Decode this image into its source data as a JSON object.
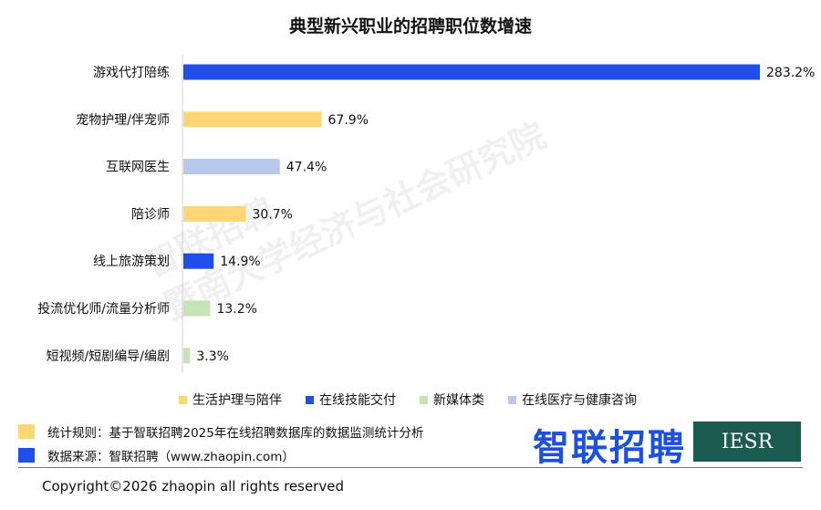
{
  "title": "典型新兴职业的招聘职位数增速",
  "colors": {
    "life": "#fcd773",
    "tech": "#1f4fe8",
    "media": "#c5e4b5",
    "health": "#b8c8ea"
  },
  "chart_data": {
    "type": "bar",
    "orientation": "horizontal",
    "title": "典型新兴职业的招聘职位数增速",
    "categories": [
      "游戏代打陪练",
      "宠物护理/伴宠师",
      "互联网医生",
      "陪诊师",
      "线上旅游策划",
      "投流优化师/流量分析师",
      "短视频/短剧编导/编剧"
    ],
    "values": [
      283.2,
      67.9,
      47.4,
      30.7,
      14.9,
      13.2,
      3.3
    ],
    "value_labels": [
      "283.2%",
      "67.9%",
      "47.4%",
      "30.7%",
      "14.9%",
      "13.2%",
      "3.3%"
    ],
    "groups": [
      "tech",
      "life",
      "health",
      "life",
      "tech",
      "media",
      "media"
    ],
    "legend": [
      {
        "name": "生活护理与陪伴",
        "group": "life"
      },
      {
        "name": "在线技能交付",
        "group": "tech"
      },
      {
        "name": "新媒体类",
        "group": "media"
      },
      {
        "name": "在线医疗与健康咨询",
        "group": "health"
      }
    ],
    "xlim": [
      0,
      283.2
    ],
    "grid": false,
    "legend_position": "bottom"
  },
  "watermark": [
    "智联招聘",
    "暨南大学经济与社会研究院"
  ],
  "notes": {
    "rule": "统计规则：基于智联招聘2025年在线招聘数据库的数据监测统计分析",
    "source": "数据来源：智联招聘（www.zhaopin.com）",
    "rule_color": "#fcd773",
    "source_color": "#1f4fe8"
  },
  "brand": "智联招聘",
  "iesr": "IESR",
  "copyright": "Copyright©2026 zhaopin all rights reserved"
}
